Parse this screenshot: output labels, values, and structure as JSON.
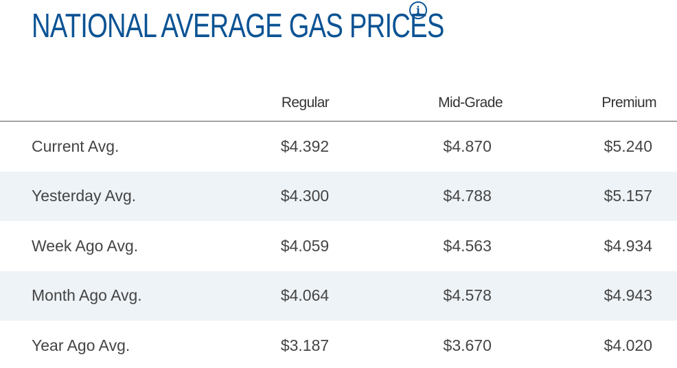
{
  "title": "NATIONAL AVERAGE GAS PRICES",
  "info_icon": "info-circle-icon",
  "colors": {
    "title": "#0b5394",
    "alt_row": "#eef3f7",
    "text": "#444444"
  },
  "table": {
    "headers": [
      "",
      "Regular",
      "Mid-Grade",
      "Premium"
    ],
    "rows": [
      {
        "label": "Current Avg.",
        "regular": "$4.392",
        "mid_grade": "$4.870",
        "premium": "$5.240"
      },
      {
        "label": "Yesterday Avg.",
        "regular": "$4.300",
        "mid_grade": "$4.788",
        "premium": "$5.157"
      },
      {
        "label": "Week Ago Avg.",
        "regular": "$4.059",
        "mid_grade": "$4.563",
        "premium": "$4.934"
      },
      {
        "label": "Month Ago Avg.",
        "regular": "$4.064",
        "mid_grade": "$4.578",
        "premium": "$4.943"
      },
      {
        "label": "Year Ago Avg.",
        "regular": "$3.187",
        "mid_grade": "$3.670",
        "premium": "$4.020"
      }
    ]
  }
}
